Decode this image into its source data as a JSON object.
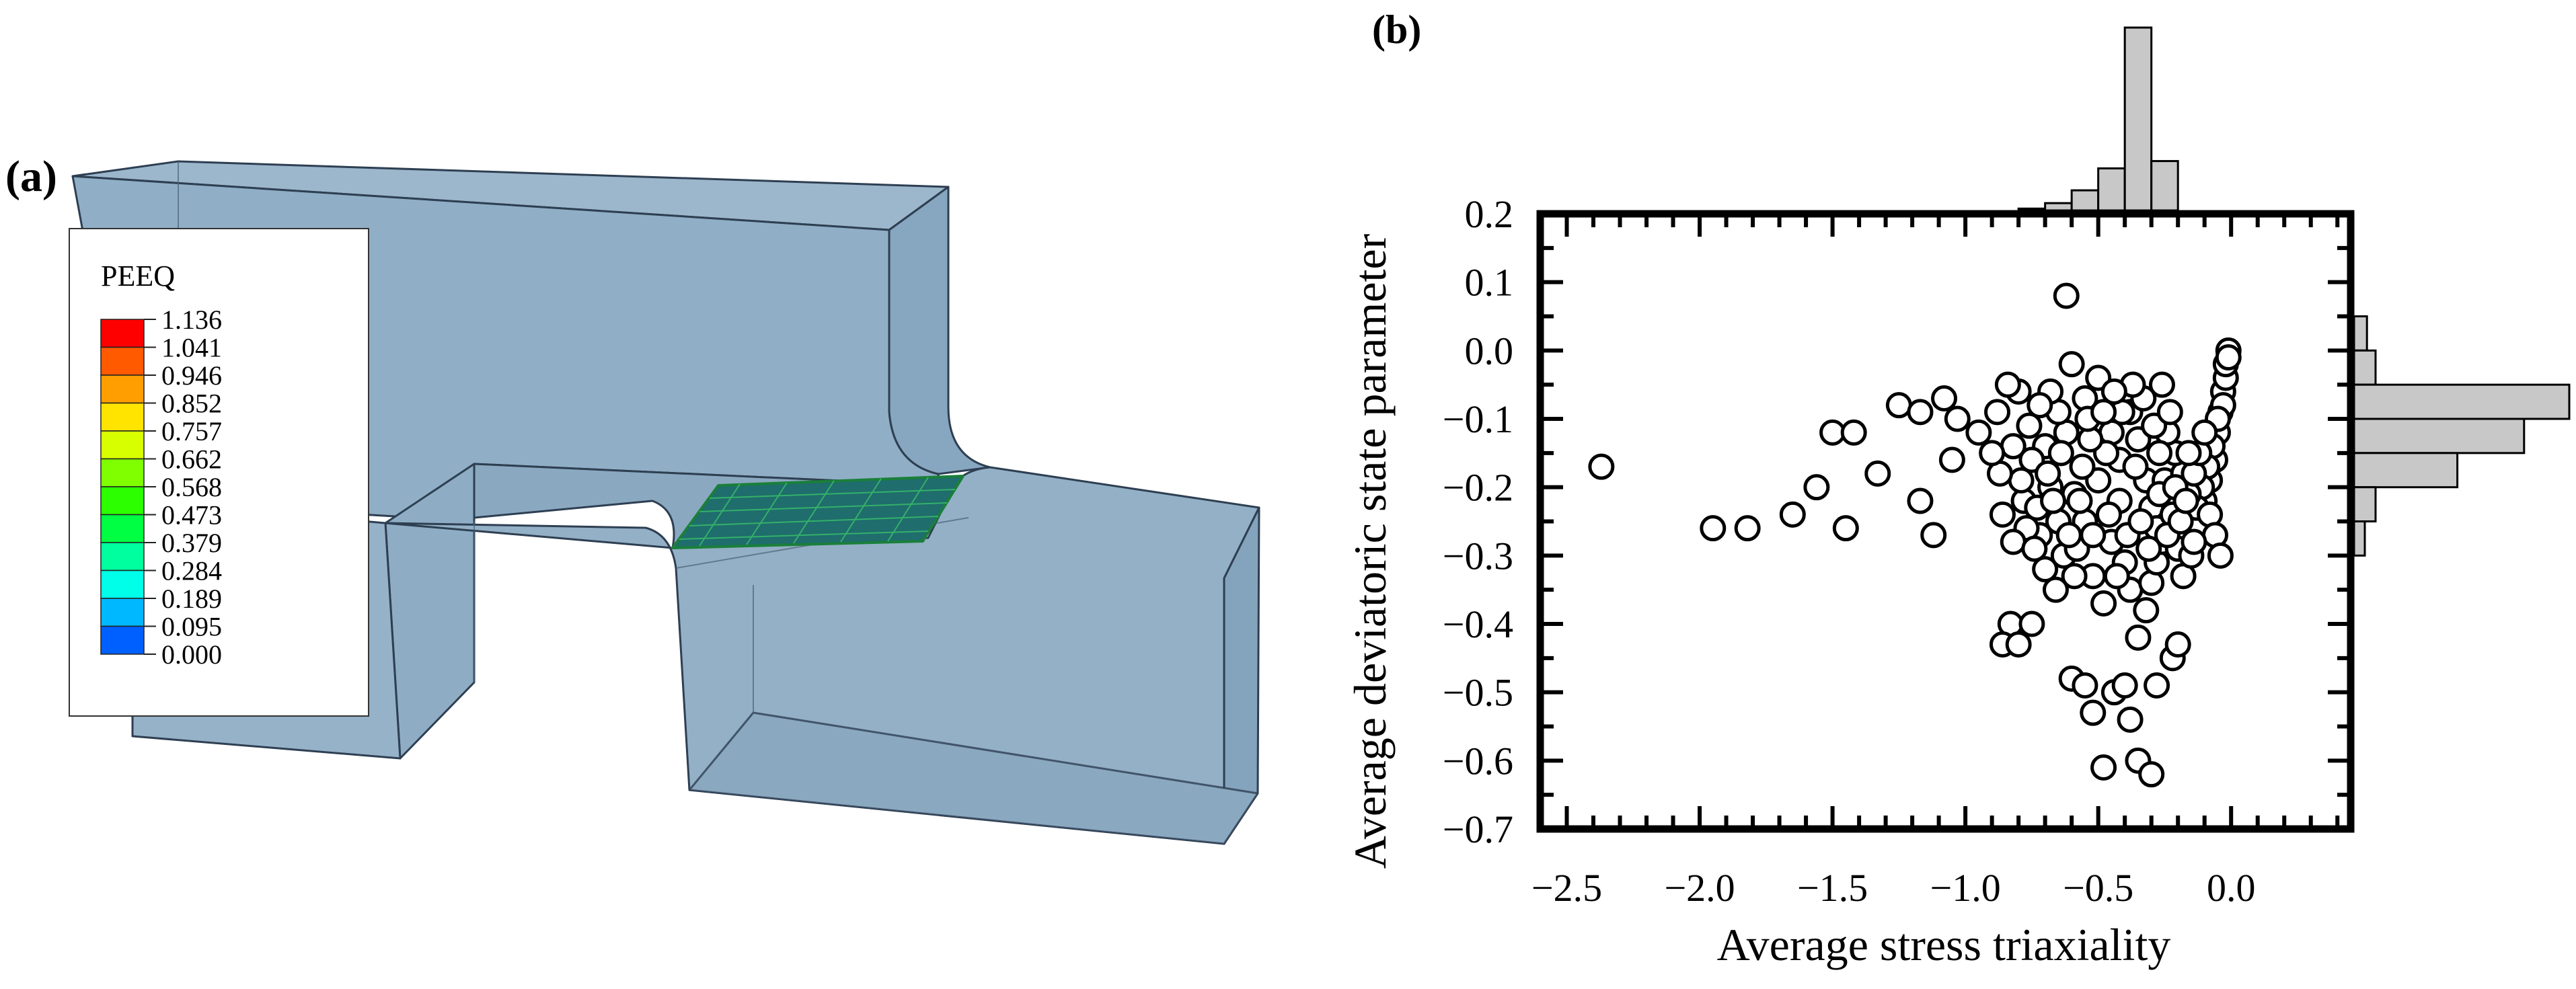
{
  "panel_a": {
    "label": "(a)",
    "legend": {
      "title": "PEEQ",
      "values": [
        "1.136",
        "1.041",
        "0.946",
        "0.852",
        "0.757",
        "0.662",
        "0.568",
        "0.473",
        "0.379",
        "0.284",
        "0.189",
        "0.095",
        "0.000"
      ],
      "colors": [
        "#ff0000",
        "#ff5a00",
        "#ff9e00",
        "#ffe400",
        "#d8ff00",
        "#7fff00",
        "#2cff00",
        "#00ff43",
        "#00ff9e",
        "#00ffe9",
        "#00b8ff",
        "#0060ff",
        "#0000ff"
      ]
    }
  },
  "panel_b": {
    "label": "(b)",
    "chart_data": {
      "type": "scatter",
      "title": "",
      "xlabel": "Average stress triaxiality",
      "ylabel": "Average deviatoric state parameter",
      "xlim": [
        -2.6,
        0.45
      ],
      "ylim": [
        -0.7,
        0.2
      ],
      "xticks": [
        "−2.5",
        "−2.0",
        "−1.5",
        "−1.0",
        "−0.5",
        "0.0"
      ],
      "xtick_values": [
        -2.5,
        -2.0,
        -1.5,
        -1.0,
        -0.5,
        0.0
      ],
      "yticks": [
        "0.2",
        "0.1",
        "0.0",
        "−0.1",
        "−0.2",
        "−0.3",
        "−0.4",
        "−0.5",
        "−0.6",
        "−0.7"
      ],
      "ytick_values": [
        0.2,
        0.1,
        0.0,
        -0.1,
        -0.2,
        -0.3,
        -0.4,
        -0.5,
        -0.6,
        -0.7
      ],
      "grid": false,
      "marker": "open-circle",
      "points": [
        [
          -2.37,
          -0.17
        ],
        [
          -1.95,
          -0.26
        ],
        [
          -1.82,
          -0.26
        ],
        [
          -1.65,
          -0.24
        ],
        [
          -1.56,
          -0.2
        ],
        [
          -1.5,
          -0.12
        ],
        [
          -1.45,
          -0.26
        ],
        [
          -1.42,
          -0.12
        ],
        [
          -1.33,
          -0.18
        ],
        [
          -1.25,
          -0.08
        ],
        [
          -1.17,
          -0.22
        ],
        [
          -1.12,
          -0.27
        ],
        [
          -1.17,
          -0.09
        ],
        [
          -1.08,
          -0.07
        ],
        [
          -1.05,
          -0.16
        ],
        [
          -1.03,
          -0.1
        ],
        [
          -0.95,
          -0.12
        ],
        [
          -0.88,
          -0.09
        ],
        [
          -0.86,
          -0.24
        ],
        [
          -0.83,
          -0.4
        ],
        [
          -0.86,
          -0.43
        ],
        [
          -0.8,
          -0.43
        ],
        [
          -0.75,
          -0.4
        ],
        [
          -0.62,
          0.08
        ],
        [
          -0.6,
          -0.48
        ],
        [
          -0.55,
          -0.49
        ],
        [
          -0.52,
          -0.53
        ],
        [
          -0.48,
          -0.61
        ],
        [
          -0.44,
          -0.5
        ],
        [
          -0.4,
          -0.49
        ],
        [
          -0.38,
          -0.54
        ],
        [
          -0.35,
          -0.6
        ],
        [
          -0.3,
          -0.62
        ],
        [
          -0.28,
          -0.49
        ],
        [
          -0.22,
          -0.45
        ],
        [
          -0.2,
          -0.43
        ],
        [
          -0.6,
          -0.02
        ],
        [
          -0.55,
          -0.07
        ],
        [
          -0.5,
          -0.04
        ],
        [
          -0.45,
          -0.12
        ],
        [
          -0.42,
          -0.22
        ],
        [
          -0.4,
          -0.31
        ],
        [
          -0.38,
          -0.35
        ],
        [
          -0.35,
          -0.42
        ],
        [
          -0.32,
          -0.38
        ],
        [
          -0.3,
          -0.34
        ],
        [
          -0.28,
          -0.31
        ],
        [
          -0.26,
          -0.28
        ],
        [
          -0.7,
          -0.14
        ],
        [
          -0.68,
          -0.2
        ],
        [
          -0.65,
          -0.25
        ],
        [
          -0.63,
          -0.3
        ],
        [
          -0.75,
          -0.16
        ],
        [
          -0.78,
          -0.22
        ],
        [
          -0.72,
          -0.27
        ],
        [
          -0.7,
          -0.32
        ],
        [
          -0.66,
          -0.35
        ],
        [
          -0.58,
          -0.29
        ],
        [
          -0.55,
          -0.25
        ],
        [
          -0.52,
          -0.33
        ],
        [
          -0.48,
          -0.37
        ],
        [
          -0.45,
          -0.28
        ],
        [
          -0.42,
          -0.16
        ],
        [
          -0.38,
          -0.09
        ],
        [
          -0.35,
          -0.13
        ],
        [
          -0.32,
          -0.19
        ],
        [
          -0.3,
          -0.23
        ],
        [
          -0.28,
          -0.26
        ],
        [
          -0.25,
          -0.19
        ],
        [
          -0.22,
          -0.24
        ],
        [
          -0.2,
          -0.29
        ],
        [
          -0.18,
          -0.33
        ],
        [
          -0.15,
          -0.3
        ],
        [
          -0.12,
          -0.26
        ],
        [
          -0.1,
          -0.22
        ],
        [
          -0.08,
          -0.19
        ],
        [
          -0.06,
          -0.16
        ],
        [
          -0.05,
          -0.12
        ],
        [
          -0.04,
          -0.09
        ],
        [
          -0.03,
          -0.06
        ],
        [
          -0.02,
          -0.04
        ],
        [
          -0.02,
          -0.02
        ],
        [
          -0.01,
          0.0
        ],
        [
          -0.01,
          -0.01
        ],
        [
          -0.03,
          -0.08
        ],
        [
          -0.05,
          -0.1
        ],
        [
          -0.07,
          -0.14
        ],
        [
          -0.09,
          -0.17
        ],
        [
          -0.11,
          -0.2
        ],
        [
          -0.13,
          -0.23
        ],
        [
          -0.16,
          -0.21
        ],
        [
          -0.18,
          -0.18
        ],
        [
          -0.21,
          -0.15
        ],
        [
          -0.24,
          -0.12
        ],
        [
          -0.27,
          -0.15
        ],
        [
          -0.29,
          -0.11
        ],
        [
          -0.33,
          -0.07
        ],
        [
          -0.37,
          -0.05
        ],
        [
          -0.41,
          -0.09
        ],
        [
          -0.44,
          -0.06
        ],
        [
          -0.47,
          -0.15
        ],
        [
          -0.5,
          -0.19
        ],
        [
          -0.53,
          -0.13
        ],
        [
          -0.56,
          -0.17
        ],
        [
          -0.59,
          -0.21
        ],
        [
          -0.62,
          -0.12
        ],
        [
          -0.65,
          -0.09
        ],
        [
          -0.68,
          -0.06
        ],
        [
          -0.72,
          -0.08
        ],
        [
          -0.76,
          -0.11
        ],
        [
          -0.8,
          -0.06
        ],
        [
          -0.84,
          -0.05
        ],
        [
          -0.82,
          -0.14
        ],
        [
          -0.79,
          -0.19
        ],
        [
          -0.77,
          -0.26
        ],
        [
          -0.73,
          -0.23
        ],
        [
          -0.69,
          -0.18
        ],
        [
          -0.61,
          -0.27
        ],
        [
          -0.57,
          -0.22
        ],
        [
          -0.54,
          -0.1
        ],
        [
          -0.46,
          -0.24
        ],
        [
          -0.43,
          -0.33
        ],
        [
          -0.39,
          -0.27
        ],
        [
          -0.36,
          -0.17
        ],
        [
          -0.34,
          -0.25
        ],
        [
          -0.31,
          -0.29
        ],
        [
          -0.27,
          -0.21
        ],
        [
          -0.24,
          -0.27
        ],
        [
          -0.21,
          -0.2
        ],
        [
          -0.19,
          -0.25
        ],
        [
          -0.17,
          -0.22
        ],
        [
          -0.14,
          -0.18
        ],
        [
          -0.12,
          -0.15
        ],
        [
          -0.1,
          -0.12
        ],
        [
          -0.08,
          -0.24
        ],
        [
          -0.06,
          -0.27
        ],
        [
          -0.04,
          -0.3
        ],
        [
          -0.14,
          -0.28
        ],
        [
          -0.16,
          -0.15
        ],
        [
          -0.23,
          -0.09
        ],
        [
          -0.26,
          -0.05
        ],
        [
          -0.48,
          -0.09
        ],
        [
          -0.52,
          -0.27
        ],
        [
          -0.64,
          -0.15
        ],
        [
          -0.87,
          -0.18
        ],
        [
          -0.9,
          -0.15
        ],
        [
          -0.82,
          -0.28
        ],
        [
          -0.74,
          -0.29
        ],
        [
          -0.67,
          -0.22
        ],
        [
          -0.59,
          -0.33
        ]
      ],
      "hist_top": {
        "bin_edges": [
          -0.8,
          -0.7,
          -0.6,
          -0.5,
          -0.4,
          -0.3,
          -0.2,
          -0.1
        ],
        "heights": [
          0.01,
          0.04,
          0.11,
          0.23,
          1.0,
          0.27,
          0.0
        ]
      },
      "hist_right": {
        "bin_edges": [
          0.1,
          0.05,
          0.0,
          -0.05,
          -0.1,
          -0.15,
          -0.2,
          -0.25,
          -0.3
        ],
        "heights": [
          0.0,
          0.06,
          0.1,
          1.0,
          0.79,
          0.48,
          0.1,
          0.05
        ]
      }
    }
  }
}
